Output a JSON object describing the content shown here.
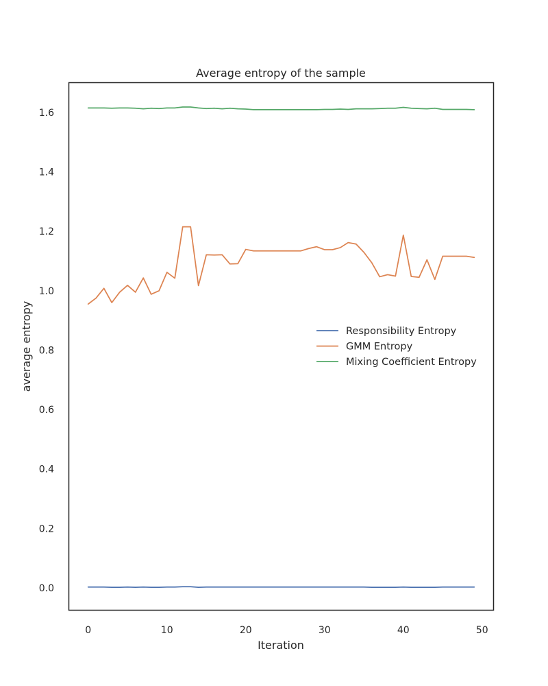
{
  "chart_data": {
    "type": "line",
    "title": "Average entropy of the sample",
    "xlabel": "Iteration",
    "ylabel": "average entropy",
    "xlim": [
      -2.45,
      51.45
    ],
    "ylim": [
      -0.075,
      1.7
    ],
    "xticks": [
      0,
      10,
      20,
      30,
      40,
      50
    ],
    "yticks": [
      0.0,
      0.2,
      0.4,
      0.6,
      0.8,
      1.0,
      1.2,
      1.4,
      1.6
    ],
    "xtick_labels": [
      "0",
      "10",
      "20",
      "30",
      "40",
      "50"
    ],
    "ytick_labels": [
      "0.0",
      "0.2",
      "0.4",
      "0.6",
      "0.8",
      "1.0",
      "1.2",
      "1.4",
      "1.6"
    ],
    "grid": false,
    "legend_position": "center-right",
    "x": [
      0,
      1,
      2,
      3,
      4,
      5,
      6,
      7,
      8,
      9,
      10,
      11,
      12,
      13,
      14,
      15,
      16,
      17,
      18,
      19,
      20,
      21,
      22,
      23,
      24,
      25,
      26,
      27,
      28,
      29,
      30,
      31,
      32,
      33,
      34,
      35,
      36,
      37,
      38,
      39,
      40,
      41,
      42,
      43,
      44,
      45,
      46,
      47,
      48,
      49
    ],
    "series": [
      {
        "name": "Responsibility Entropy",
        "color": "#4c72b0",
        "values": [
          0.003,
          0.003,
          0.003,
          0.002,
          0.002,
          0.003,
          0.002,
          0.003,
          0.002,
          0.002,
          0.003,
          0.003,
          0.004,
          0.004,
          0.002,
          0.003,
          0.003,
          0.003,
          0.003,
          0.003,
          0.003,
          0.003,
          0.003,
          0.003,
          0.003,
          0.003,
          0.003,
          0.003,
          0.003,
          0.003,
          0.003,
          0.003,
          0.003,
          0.003,
          0.003,
          0.003,
          0.002,
          0.002,
          0.002,
          0.002,
          0.003,
          0.002,
          0.002,
          0.002,
          0.002,
          0.003,
          0.003,
          0.003,
          0.003,
          0.003
        ]
      },
      {
        "name": "GMM Entropy",
        "color": "#dd8452",
        "values": [
          0.955,
          0.975,
          1.008,
          0.96,
          0.995,
          1.018,
          0.995,
          1.043,
          0.988,
          1.0,
          1.062,
          1.042,
          1.215,
          1.215,
          1.017,
          1.121,
          1.12,
          1.121,
          1.09,
          1.091,
          1.139,
          1.134,
          1.134,
          1.134,
          1.134,
          1.134,
          1.134,
          1.134,
          1.142,
          1.148,
          1.138,
          1.138,
          1.145,
          1.162,
          1.157,
          1.129,
          1.094,
          1.047,
          1.054,
          1.049,
          1.187,
          1.048,
          1.045,
          1.104,
          1.038,
          1.116,
          1.116,
          1.116,
          1.116,
          1.112
        ]
      },
      {
        "name": "Mixing Coefficient Entropy",
        "color": "#55a868",
        "values": [
          1.615,
          1.615,
          1.615,
          1.614,
          1.615,
          1.615,
          1.614,
          1.612,
          1.614,
          1.613,
          1.615,
          1.615,
          1.618,
          1.618,
          1.615,
          1.613,
          1.614,
          1.612,
          1.614,
          1.612,
          1.611,
          1.609,
          1.609,
          1.609,
          1.609,
          1.609,
          1.609,
          1.609,
          1.609,
          1.609,
          1.61,
          1.61,
          1.611,
          1.61,
          1.612,
          1.612,
          1.612,
          1.613,
          1.614,
          1.614,
          1.617,
          1.614,
          1.613,
          1.612,
          1.614,
          1.61,
          1.61,
          1.61,
          1.61,
          1.609
        ]
      }
    ]
  }
}
